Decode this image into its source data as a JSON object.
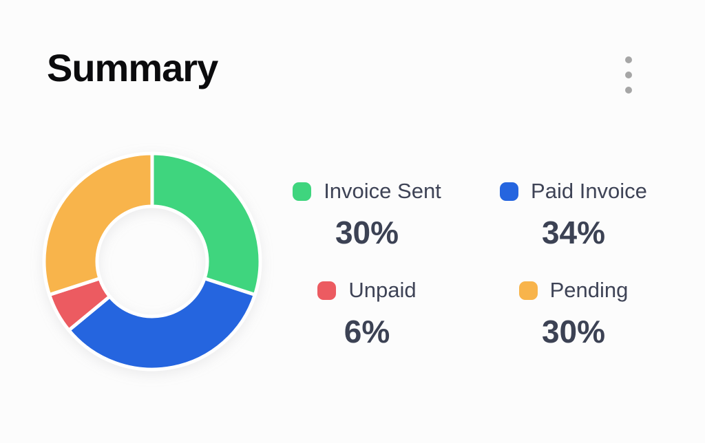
{
  "page": {
    "background": "#FCFCFC"
  },
  "header": {
    "title": "Summary",
    "menu_icon": "kebab-menu-icon"
  },
  "chart_data": {
    "type": "pie",
    "subtype": "donut",
    "title": "Summary",
    "categories": [
      "Invoice Sent",
      "Paid Invoice",
      "Unpaid",
      "Pending"
    ],
    "values": [
      30,
      34,
      6,
      30
    ],
    "unit": "%",
    "colors": [
      "#3FD57E",
      "#2565DF",
      "#EC5B61",
      "#F8B44B"
    ],
    "start_angle_deg": 0,
    "direction": "clockwise",
    "inner_radius_ratio": 0.51,
    "slice_gap_color": "#FFFFFF",
    "legend_position": "right",
    "legend": [
      {
        "label": "Invoice Sent",
        "percent_label": "30%",
        "color": "#3FD57E"
      },
      {
        "label": "Paid Invoice",
        "percent_label": "34%",
        "color": "#2565DF"
      },
      {
        "label": "Unpaid",
        "percent_label": "6%",
        "color": "#EC5B61"
      },
      {
        "label": "Pending",
        "percent_label": "30%",
        "color": "#F8B44B"
      }
    ]
  },
  "style_colors": {
    "title_text": "#0B0B0D",
    "label_text": "#3E4356",
    "percent_text": "#3C4254",
    "menu_dots": "#A6A6A6"
  }
}
